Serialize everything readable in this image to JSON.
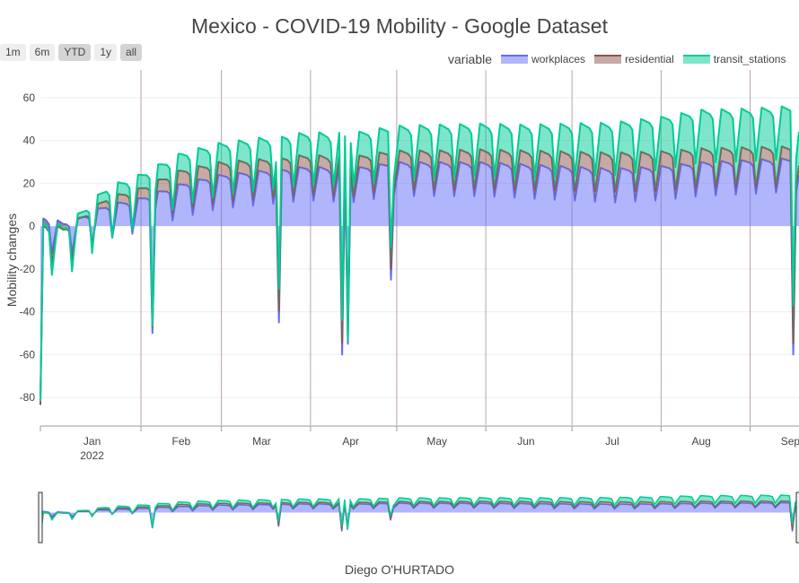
{
  "chart_data": {
    "type": "area",
    "title": "Mexico - COVID-19 Mobility - Google Dataset",
    "xlabel": "Diego O'HURTADO",
    "ylabel": "Mobility changes",
    "legend_title": "variable",
    "range_buttons": [
      "1m",
      "6m",
      "YTD",
      "1y",
      "all"
    ],
    "active_range": "YTD",
    "x_range": [
      "2021-12-28",
      "2022-09-18"
    ],
    "ylim": [
      -93,
      73
    ],
    "y_ticks": [
      -80,
      -60,
      -40,
      -20,
      0,
      20,
      40,
      60
    ],
    "x_ticks": [
      {
        "date": "2022-01-15",
        "label": "Jan",
        "sublabel": "2022"
      },
      {
        "date": "2022-02-15",
        "label": "Feb",
        "sublabel": ""
      },
      {
        "date": "2022-03-15",
        "label": "Mar",
        "sublabel": ""
      },
      {
        "date": "2022-04-15",
        "label": "Apr",
        "sublabel": ""
      },
      {
        "date": "2022-05-15",
        "label": "May",
        "sublabel": ""
      },
      {
        "date": "2022-06-15",
        "label": "Jun",
        "sublabel": ""
      },
      {
        "date": "2022-07-15",
        "label": "Jul",
        "sublabel": ""
      },
      {
        "date": "2022-08-15",
        "label": "Aug",
        "sublabel": ""
      },
      {
        "date": "2022-09-15",
        "label": "Sep",
        "sublabel": ""
      }
    ],
    "month_gridlines": [
      "2022-02-01",
      "2022-03-01",
      "2022-04-01",
      "2022-05-01",
      "2022-06-01",
      "2022-07-01",
      "2022-08-01",
      "2022-09-01"
    ],
    "stacking": "cumulative",
    "series": [
      {
        "name": "workplaces",
        "color": "#636efa",
        "anchors": [
          [
            "2021-12-28",
            -5
          ],
          [
            "2022-01-05",
            -8
          ],
          [
            "2022-01-10",
            -6
          ],
          [
            "2022-01-20",
            0
          ],
          [
            "2022-01-31",
            3
          ],
          [
            "2022-02-15",
            10
          ],
          [
            "2022-02-28",
            14
          ],
          [
            "2022-03-15",
            16
          ],
          [
            "2022-03-31",
            18
          ],
          [
            "2022-04-15",
            17
          ],
          [
            "2022-04-30",
            20
          ],
          [
            "2022-05-15",
            20
          ],
          [
            "2022-05-31",
            20
          ],
          [
            "2022-06-15",
            19
          ],
          [
            "2022-06-30",
            18
          ],
          [
            "2022-07-15",
            17
          ],
          [
            "2022-07-31",
            18
          ],
          [
            "2022-08-15",
            20
          ],
          [
            "2022-08-31",
            21
          ],
          [
            "2022-09-18",
            22
          ]
        ],
        "weekly_amplitude": 10,
        "dips": [
          [
            "2021-12-28",
            -80
          ],
          [
            "2022-02-05",
            -50
          ],
          [
            "2022-03-21",
            -45
          ],
          [
            "2022-04-12",
            -60
          ],
          [
            "2022-04-14",
            -55
          ],
          [
            "2022-04-29",
            -25
          ],
          [
            "2022-09-16",
            -60
          ]
        ]
      },
      {
        "name": "residential",
        "color": "#8c564b",
        "anchors": [
          [
            "2021-12-28",
            -5
          ],
          [
            "2022-01-05",
            -4
          ],
          [
            "2022-01-20",
            2
          ],
          [
            "2022-02-15",
            5
          ],
          [
            "2022-03-15",
            4
          ],
          [
            "2022-04-15",
            4
          ],
          [
            "2022-05-15",
            4
          ],
          [
            "2022-06-15",
            5
          ],
          [
            "2022-07-15",
            6
          ],
          [
            "2022-08-15",
            5
          ],
          [
            "2022-09-18",
            4
          ]
        ],
        "weekly_amplitude": 1.5,
        "dips": [
          [
            "2022-04-14",
            6
          ]
        ]
      },
      {
        "name": "transit_stations",
        "color": "#00cc96",
        "anchors": [
          [
            "2021-12-28",
            -2
          ],
          [
            "2022-01-05",
            -3
          ],
          [
            "2022-01-20",
            1
          ],
          [
            "2022-02-15",
            4
          ],
          [
            "2022-03-15",
            6
          ],
          [
            "2022-04-15",
            7
          ],
          [
            "2022-05-15",
            8
          ],
          [
            "2022-06-15",
            8
          ],
          [
            "2022-07-15",
            10
          ],
          [
            "2022-07-31",
            12
          ],
          [
            "2022-08-15",
            14
          ],
          [
            "2022-08-31",
            14
          ],
          [
            "2022-09-18",
            15
          ]
        ],
        "weekly_amplitude": 4,
        "dips": [
          [
            "2022-04-14",
            -4
          ]
        ]
      }
    ]
  },
  "caption": "Diego O'HURTADO"
}
